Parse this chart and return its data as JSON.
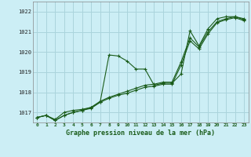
{
  "title": "Graphe pression niveau de la mer (hPa)",
  "background_color": "#cceef5",
  "grid_color": "#aad4dc",
  "line_color": "#1a5c1a",
  "xlim": [
    -0.5,
    23.5
  ],
  "ylim": [
    1016.5,
    1022.5
  ],
  "xticks": [
    0,
    1,
    2,
    3,
    4,
    5,
    6,
    7,
    8,
    9,
    10,
    11,
    12,
    13,
    14,
    15,
    16,
    17,
    18,
    19,
    20,
    21,
    22,
    23
  ],
  "yticks": [
    1017,
    1018,
    1019,
    1020,
    1021,
    1022
  ],
  "series1": [
    1016.75,
    1016.85,
    1016.65,
    1017.0,
    1017.1,
    1017.15,
    1017.25,
    1017.5,
    1019.85,
    1019.8,
    1019.55,
    1019.15,
    1019.15,
    1018.35,
    1018.45,
    1018.45,
    1018.9,
    1021.05,
    1020.3,
    1021.15,
    1021.65,
    1021.75,
    1021.75,
    1021.65
  ],
  "series2": [
    1016.75,
    1016.85,
    1016.6,
    1016.85,
    1017.0,
    1017.1,
    1017.25,
    1017.55,
    1017.75,
    1017.9,
    1018.05,
    1018.2,
    1018.35,
    1018.4,
    1018.5,
    1018.5,
    1019.5,
    1020.7,
    1020.25,
    1021.0,
    1021.5,
    1021.65,
    1021.75,
    1021.6
  ],
  "series3": [
    1016.75,
    1016.85,
    1016.6,
    1016.85,
    1017.0,
    1017.1,
    1017.2,
    1017.5,
    1017.7,
    1017.85,
    1017.95,
    1018.1,
    1018.25,
    1018.3,
    1018.4,
    1018.4,
    1019.35,
    1020.55,
    1020.15,
    1020.9,
    1021.45,
    1021.6,
    1021.7,
    1021.55
  ]
}
